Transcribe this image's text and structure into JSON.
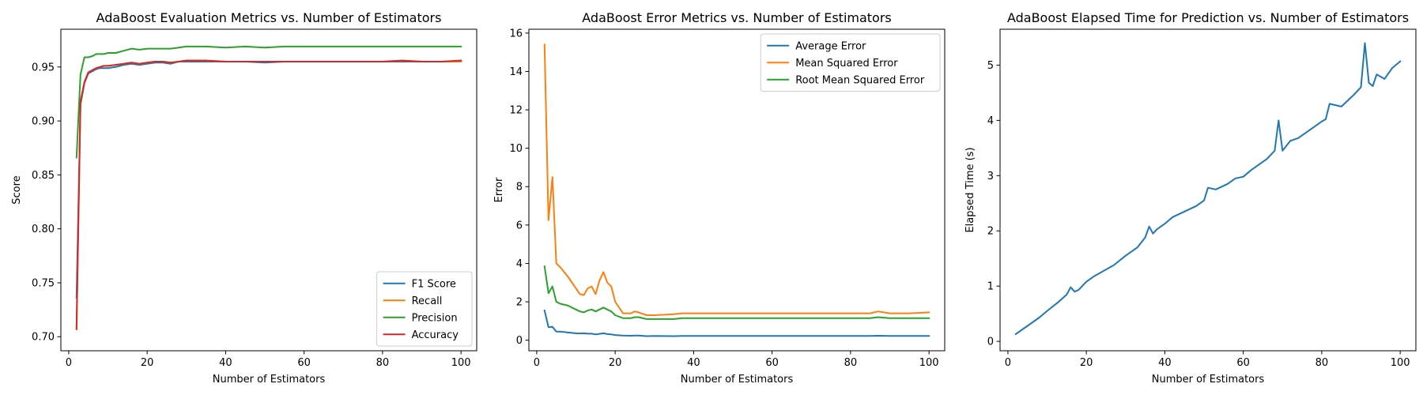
{
  "chart_data": [
    {
      "type": "line",
      "title": "AdaBoost Evaluation Metrics vs. Number of Estimators",
      "xlabel": "Number of Estimators",
      "ylabel": "Score",
      "xlim": [
        -2,
        104
      ],
      "ylim": [
        0.687,
        0.985
      ],
      "xticks": [
        0,
        20,
        40,
        60,
        80,
        100
      ],
      "yticks": [
        0.7,
        0.75,
        0.8,
        0.85,
        0.9,
        0.95
      ],
      "yticklabels": [
        "0.70",
        "0.75",
        "0.80",
        "0.85",
        "0.90",
        "0.95"
      ],
      "grid": false,
      "legend": "lower right",
      "x": [
        2,
        3,
        4,
        5,
        6,
        7,
        8,
        9,
        10,
        12,
        14,
        16,
        18,
        20,
        22,
        24,
        26,
        28,
        30,
        35,
        40,
        45,
        50,
        55,
        60,
        65,
        70,
        75,
        80,
        85,
        90,
        95,
        100
      ],
      "series": [
        {
          "name": "F1 Score",
          "color": "#1f77b4",
          "values": [
            0.736,
            0.915,
            0.935,
            0.944,
            0.946,
            0.948,
            0.949,
            0.949,
            0.949,
            0.95,
            0.952,
            0.953,
            0.952,
            0.953,
            0.954,
            0.954,
            0.953,
            0.955,
            0.955,
            0.955,
            0.955,
            0.955,
            0.954,
            0.955,
            0.955,
            0.955,
            0.955,
            0.955,
            0.955,
            0.955,
            0.955,
            0.955,
            0.955
          ]
        },
        {
          "name": "Recall",
          "color": "#ff7f0e",
          "values": [
            0.707,
            0.918,
            0.936,
            0.945,
            0.947,
            0.949,
            0.95,
            0.951,
            0.951,
            0.952,
            0.953,
            0.954,
            0.953,
            0.954,
            0.955,
            0.955,
            0.954,
            0.955,
            0.956,
            0.956,
            0.955,
            0.955,
            0.955,
            0.955,
            0.955,
            0.955,
            0.955,
            0.955,
            0.955,
            0.956,
            0.955,
            0.955,
            0.955
          ]
        },
        {
          "name": "Precision",
          "color": "#2ca02c",
          "values": [
            0.866,
            0.943,
            0.959,
            0.959,
            0.96,
            0.962,
            0.962,
            0.962,
            0.963,
            0.963,
            0.965,
            0.967,
            0.966,
            0.967,
            0.967,
            0.967,
            0.967,
            0.968,
            0.969,
            0.969,
            0.968,
            0.969,
            0.968,
            0.969,
            0.969,
            0.969,
            0.969,
            0.969,
            0.969,
            0.969,
            0.969,
            0.969,
            0.969
          ]
        },
        {
          "name": "Accuracy",
          "color": "#d62728",
          "values": [
            0.707,
            0.918,
            0.936,
            0.945,
            0.947,
            0.949,
            0.95,
            0.951,
            0.951,
            0.952,
            0.953,
            0.954,
            0.953,
            0.954,
            0.955,
            0.955,
            0.954,
            0.955,
            0.956,
            0.956,
            0.955,
            0.955,
            0.955,
            0.955,
            0.955,
            0.955,
            0.955,
            0.955,
            0.955,
            0.956,
            0.955,
            0.955,
            0.956
          ]
        }
      ]
    },
    {
      "type": "line",
      "title": "AdaBoost Error Metrics vs. Number of Estimators",
      "xlabel": "Number of Estimators",
      "ylabel": "Error",
      "xlim": [
        -2,
        104
      ],
      "ylim": [
        -0.55,
        16.2
      ],
      "xticks": [
        0,
        20,
        40,
        60,
        80,
        100
      ],
      "yticks": [
        0,
        2,
        4,
        6,
        8,
        10,
        12,
        14,
        16
      ],
      "yticklabels": [
        "0",
        "2",
        "4",
        "6",
        "8",
        "10",
        "12",
        "14",
        "16"
      ],
      "grid": false,
      "legend": "upper right",
      "x": [
        2,
        3,
        4,
        5,
        6,
        8,
        10,
        11,
        12,
        13,
        14,
        15,
        16,
        17,
        18,
        19,
        20,
        22,
        24,
        25,
        26,
        28,
        30,
        35,
        37,
        40,
        45,
        50,
        55,
        60,
        65,
        70,
        75,
        80,
        85,
        87,
        90,
        95,
        100
      ],
      "series": [
        {
          "name": "Average Error",
          "color": "#1f77b4",
          "values": [
            1.55,
            0.68,
            0.7,
            0.45,
            0.45,
            0.4,
            0.36,
            0.35,
            0.36,
            0.34,
            0.34,
            0.3,
            0.33,
            0.36,
            0.32,
            0.3,
            0.27,
            0.24,
            0.23,
            0.24,
            0.24,
            0.21,
            0.22,
            0.21,
            0.22,
            0.22,
            0.22,
            0.22,
            0.22,
            0.22,
            0.22,
            0.22,
            0.22,
            0.22,
            0.22,
            0.23,
            0.22,
            0.22,
            0.22
          ]
        },
        {
          "name": "Mean Squared Error",
          "color": "#ff7f0e",
          "values": [
            15.4,
            6.25,
            8.5,
            4.0,
            3.8,
            3.3,
            2.7,
            2.4,
            2.35,
            2.7,
            2.8,
            2.4,
            3.1,
            3.55,
            3.0,
            2.8,
            2.0,
            1.4,
            1.4,
            1.5,
            1.45,
            1.3,
            1.3,
            1.35,
            1.4,
            1.4,
            1.4,
            1.4,
            1.4,
            1.4,
            1.4,
            1.4,
            1.4,
            1.4,
            1.4,
            1.5,
            1.4,
            1.4,
            1.45
          ]
        },
        {
          "name": "Root Mean Squared Error",
          "color": "#2ca02c",
          "values": [
            3.85,
            2.45,
            2.8,
            2.0,
            1.9,
            1.8,
            1.6,
            1.5,
            1.45,
            1.55,
            1.6,
            1.5,
            1.6,
            1.7,
            1.6,
            1.5,
            1.3,
            1.15,
            1.15,
            1.2,
            1.2,
            1.1,
            1.1,
            1.1,
            1.15,
            1.15,
            1.15,
            1.15,
            1.15,
            1.15,
            1.15,
            1.15,
            1.15,
            1.15,
            1.15,
            1.2,
            1.15,
            1.15,
            1.15
          ]
        }
      ]
    },
    {
      "type": "line",
      "title": "AdaBoost Elapsed Time for Prediction vs. Number of Estimators",
      "xlabel": "Number of Estimators",
      "ylabel": "Elapsed Time (s)",
      "xlim": [
        -2,
        104
      ],
      "ylim": [
        -0.17,
        5.65
      ],
      "xticks": [
        0,
        20,
        40,
        60,
        80,
        100
      ],
      "yticks": [
        0,
        1,
        2,
        3,
        4,
        5
      ],
      "yticklabels": [
        "0",
        "1",
        "2",
        "3",
        "4",
        "5"
      ],
      "grid": false,
      "legend": "none",
      "x": [
        2,
        5,
        8,
        10,
        13,
        15,
        16,
        17,
        18,
        20,
        22,
        25,
        27,
        30,
        33,
        35,
        36,
        37,
        38,
        40,
        42,
        45,
        48,
        50,
        51,
        53,
        56,
        58,
        60,
        62,
        64,
        66,
        68,
        69,
        70,
        72,
        74,
        76,
        78,
        80,
        81,
        82,
        85,
        88,
        90,
        91,
        92,
        93,
        94,
        96,
        98,
        100
      ],
      "series": [
        {
          "name": "Elapsed Time",
          "color": "#1f77b4",
          "values": [
            0.13,
            0.28,
            0.43,
            0.55,
            0.72,
            0.85,
            0.98,
            0.9,
            0.93,
            1.08,
            1.18,
            1.3,
            1.38,
            1.55,
            1.7,
            1.88,
            2.08,
            1.95,
            2.03,
            2.13,
            2.25,
            2.35,
            2.45,
            2.55,
            2.78,
            2.75,
            2.85,
            2.95,
            2.98,
            3.1,
            3.2,
            3.3,
            3.45,
            4.0,
            3.45,
            3.63,
            3.68,
            3.78,
            3.88,
            3.98,
            4.02,
            4.3,
            4.25,
            4.45,
            4.6,
            5.4,
            4.68,
            4.62,
            4.83,
            4.75,
            4.95,
            5.07
          ]
        }
      ]
    }
  ]
}
